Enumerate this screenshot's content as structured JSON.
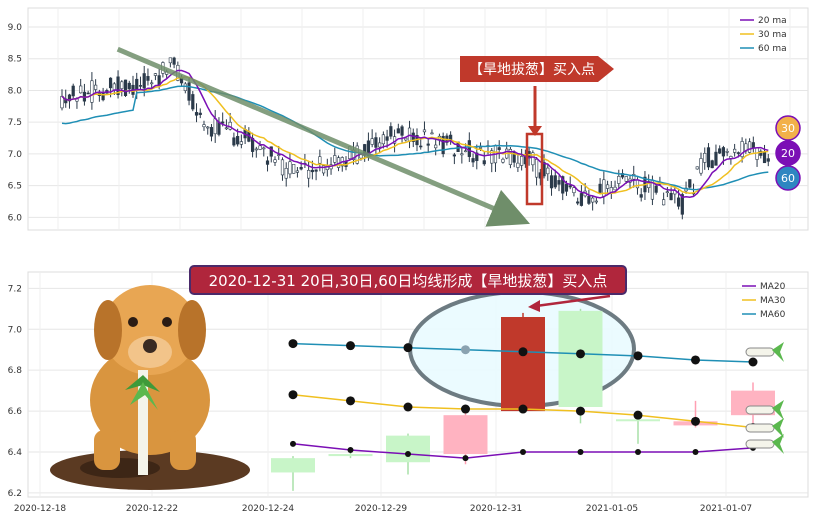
{
  "chart_data": [
    {
      "type": "candlestick",
      "ylim": [
        5.8,
        9.3
      ],
      "yticks": [
        "6.0",
        "6.5",
        "7.0",
        "7.5",
        "8.0",
        "8.5",
        "9.0"
      ],
      "legend": [
        "20 ma",
        "30 ma",
        "60 ma"
      ],
      "legend_position": "top-right",
      "series_colors": {
        "ma20": "#7b0fb5",
        "ma30": "#f0c020",
        "ma60": "#1f8fb5"
      },
      "annotation": "【旱地拔葱】买入点",
      "badges": [
        "30",
        "20",
        "60"
      ],
      "trend_line": {
        "from": [
          8.65,
          0.115
        ],
        "to": [
          6.02,
          0.62
        ]
      },
      "grid": true
    },
    {
      "type": "candlestick",
      "ylim": [
        6.18,
        7.28
      ],
      "yticks": [
        "6.2",
        "6.4",
        "6.6",
        "6.8",
        "7.0",
        "7.2"
      ],
      "xticks": [
        "2020-12-18",
        "2020-12-22",
        "2020-12-24",
        "2020-12-29",
        "2020-12-31",
        "2021-01-05",
        "2021-01-07"
      ],
      "legend": [
        "MA20",
        "MA30",
        "MA60"
      ],
      "legend_position": "top-right",
      "title": "2020-12-31 20日,30日,60日均线形成【旱地拔葱】买入点",
      "candles": [
        {
          "open": 6.3,
          "close": 6.37,
          "high": 6.38,
          "low": 6.21
        },
        {
          "open": 6.38,
          "close": 6.39,
          "high": 6.4,
          "low": 6.37
        },
        {
          "open": 6.35,
          "close": 6.48,
          "high": 6.49,
          "low": 6.29
        },
        {
          "open": 6.58,
          "close": 6.39,
          "high": 6.6,
          "low": 6.34
        },
        {
          "open": 6.6,
          "close": 7.06,
          "high": 7.08,
          "low": 6.6
        },
        {
          "open": 6.62,
          "close": 7.09,
          "high": 7.1,
          "low": 6.54
        },
        {
          "open": 6.56,
          "close": 6.56,
          "high": 6.59,
          "low": 6.44
        },
        {
          "open": 6.55,
          "close": 6.53,
          "high": 6.65,
          "low": 6.52
        },
        {
          "open": 6.7,
          "close": 6.58,
          "high": 6.74,
          "low": 6.52
        }
      ],
      "ma20": [
        6.44,
        6.41,
        6.39,
        6.37,
        6.4,
        6.4,
        6.4,
        6.4,
        6.42
      ],
      "ma30": [
        6.68,
        6.65,
        6.62,
        6.61,
        6.61,
        6.6,
        6.58,
        6.55,
        6.52
      ],
      "ma60": [
        6.93,
        6.92,
        6.91,
        6.9,
        6.89,
        6.88,
        6.87,
        6.85,
        6.84
      ],
      "grid": true
    }
  ]
}
